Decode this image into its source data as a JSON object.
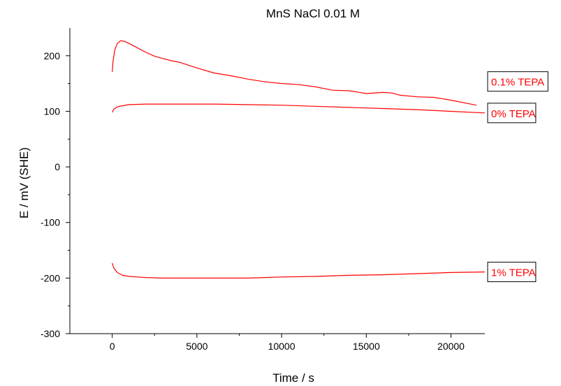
{
  "chart_data": {
    "type": "line",
    "title": "MnS NaCl 0.01 M",
    "xlabel": "Time / s",
    "ylabel": "E / mV (SHE)",
    "xlim": [
      -2500,
      22000
    ],
    "ylim": [
      -300,
      250
    ],
    "xticks": [
      0,
      5000,
      10000,
      15000,
      20000
    ],
    "yticks": [
      -300,
      -200,
      -100,
      0,
      100,
      200
    ],
    "grid": false,
    "legend": "labels placed at right end of each curve",
    "line_color": "#ff0000",
    "series": [
      {
        "name": "0.1% TEPA",
        "x": [
          0,
          50,
          150,
          300,
          500,
          700,
          1000,
          1500,
          2000,
          2500,
          3000,
          3500,
          4000,
          5000,
          6000,
          7000,
          8000,
          9000,
          10000,
          11000,
          12000,
          12500,
          13000,
          14000,
          15000,
          16000,
          16500,
          17000,
          18000,
          19000,
          20000,
          21000,
          21500
        ],
        "y": [
          171,
          190,
          210,
          222,
          227,
          226,
          222,
          214,
          206,
          199,
          195,
          191,
          188,
          178,
          169,
          164,
          158,
          153,
          150,
          148,
          144,
          141,
          138,
          137,
          132,
          134,
          133,
          129,
          126,
          125,
          120,
          114,
          111
        ]
      },
      {
        "name": "0% TEPA",
        "x": [
          0,
          100,
          300,
          600,
          1000,
          2000,
          3000,
          4000,
          6000,
          8000,
          10000,
          12000,
          14000,
          16000,
          18000,
          20000,
          22000
        ],
        "y": [
          98,
          104,
          108,
          110,
          112,
          113,
          113,
          113,
          113,
          112,
          111,
          109,
          107,
          105,
          103,
          100,
          97
        ]
      },
      {
        "name": "1% TEPA",
        "x": [
          0,
          100,
          300,
          600,
          1000,
          1500,
          2000,
          3000,
          4000,
          5000,
          6000,
          7000,
          8000,
          10000,
          12000,
          14000,
          16000,
          18000,
          20000,
          22000
        ],
        "y": [
          -173,
          -182,
          -190,
          -195,
          -197,
          -198,
          -199,
          -200,
          -200,
          -200,
          -200,
          -200,
          -200,
          -198,
          -197,
          -195,
          -194,
          -192,
          -190,
          -189
        ]
      }
    ]
  }
}
